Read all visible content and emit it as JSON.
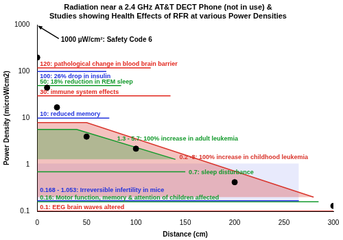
{
  "chart_data": {
    "type": "scatter",
    "title": [
      "Radiation near a 2.4 GHz AT&T DECT Phone (not in use) &",
      "Studies showing Health Effects of RFR at various Power Densities"
    ],
    "x_label": "Distance (cm)",
    "y_label": "Power Density (microW/cm2)",
    "log": "y",
    "grid": false,
    "xlim": [
      0,
      300
    ],
    "xticks": [
      0,
      50,
      100,
      150,
      200,
      250,
      300
    ],
    "ylim": [
      0.1,
      1000
    ],
    "yticks": [
      0.1,
      1,
      10,
      100,
      1000
    ],
    "series": [
      {
        "color": "#000000",
        "marker": "circle",
        "x": [
          0,
          10,
          20,
          50,
          100,
          200,
          300
        ],
        "values": [
          200,
          45,
          17,
          4,
          2.2,
          0.42,
          0.13
        ]
      }
    ],
    "annotations": [
      {
        "text": "1000 µW/cm²: Safety Code 6",
        "value": 1000,
        "color": "#000000"
      },
      {
        "text": "120: pathological change in blood brain barrier",
        "value": 120,
        "x": [
          0,
          115
        ],
        "color": "#e2261d"
      },
      {
        "text": "100: 26% drop in insulin",
        "value": 100,
        "x": [
          0,
          70
        ],
        "color": "#2233dd"
      },
      {
        "text": "50: 18% reduction in REM sleep",
        "value": 50,
        "x": [
          0,
          85
        ],
        "color": "#139a2c"
      },
      {
        "text": "30: immune system effects",
        "value": 30,
        "x": [
          0,
          135
        ],
        "color": "#e2261d"
      },
      {
        "text": "10: reduced memory",
        "value": 10,
        "x": [
          0,
          73
        ],
        "color": "#2233dd"
      },
      {
        "text": "0.7: sleep disturbance",
        "value": 0.7,
        "x": [
          0,
          150
        ],
        "color": "#139a2c"
      },
      {
        "text": "1.3 - 5.7: 100% increase in adult leukemia",
        "range": [
          1.3,
          5.7
        ],
        "x": [
          0,
          40,
          140
        ],
        "color": "#139a2c"
      },
      {
        "text": "0.2 -8: 100% increase in childhood leukemia",
        "range": [
          0.2,
          8
        ],
        "x": [
          0,
          50,
          280
        ],
        "color": "#d9342b"
      },
      {
        "text": "0.168 - 1.053: Irreversible infertility in mice",
        "range": [
          0.168,
          1.053
        ],
        "x": [
          0,
          265
        ],
        "color": "#2233dd"
      },
      {
        "text": "0.16: Motor function, memory & attention of children affected",
        "value": 0.16,
        "x": [
          0,
          285
        ],
        "color": "#139a2c"
      },
      {
        "text": "0.1: EEG brain waves altered",
        "value": 0.1,
        "x": [
          0,
          300
        ],
        "color": "#e2261d"
      }
    ]
  }
}
